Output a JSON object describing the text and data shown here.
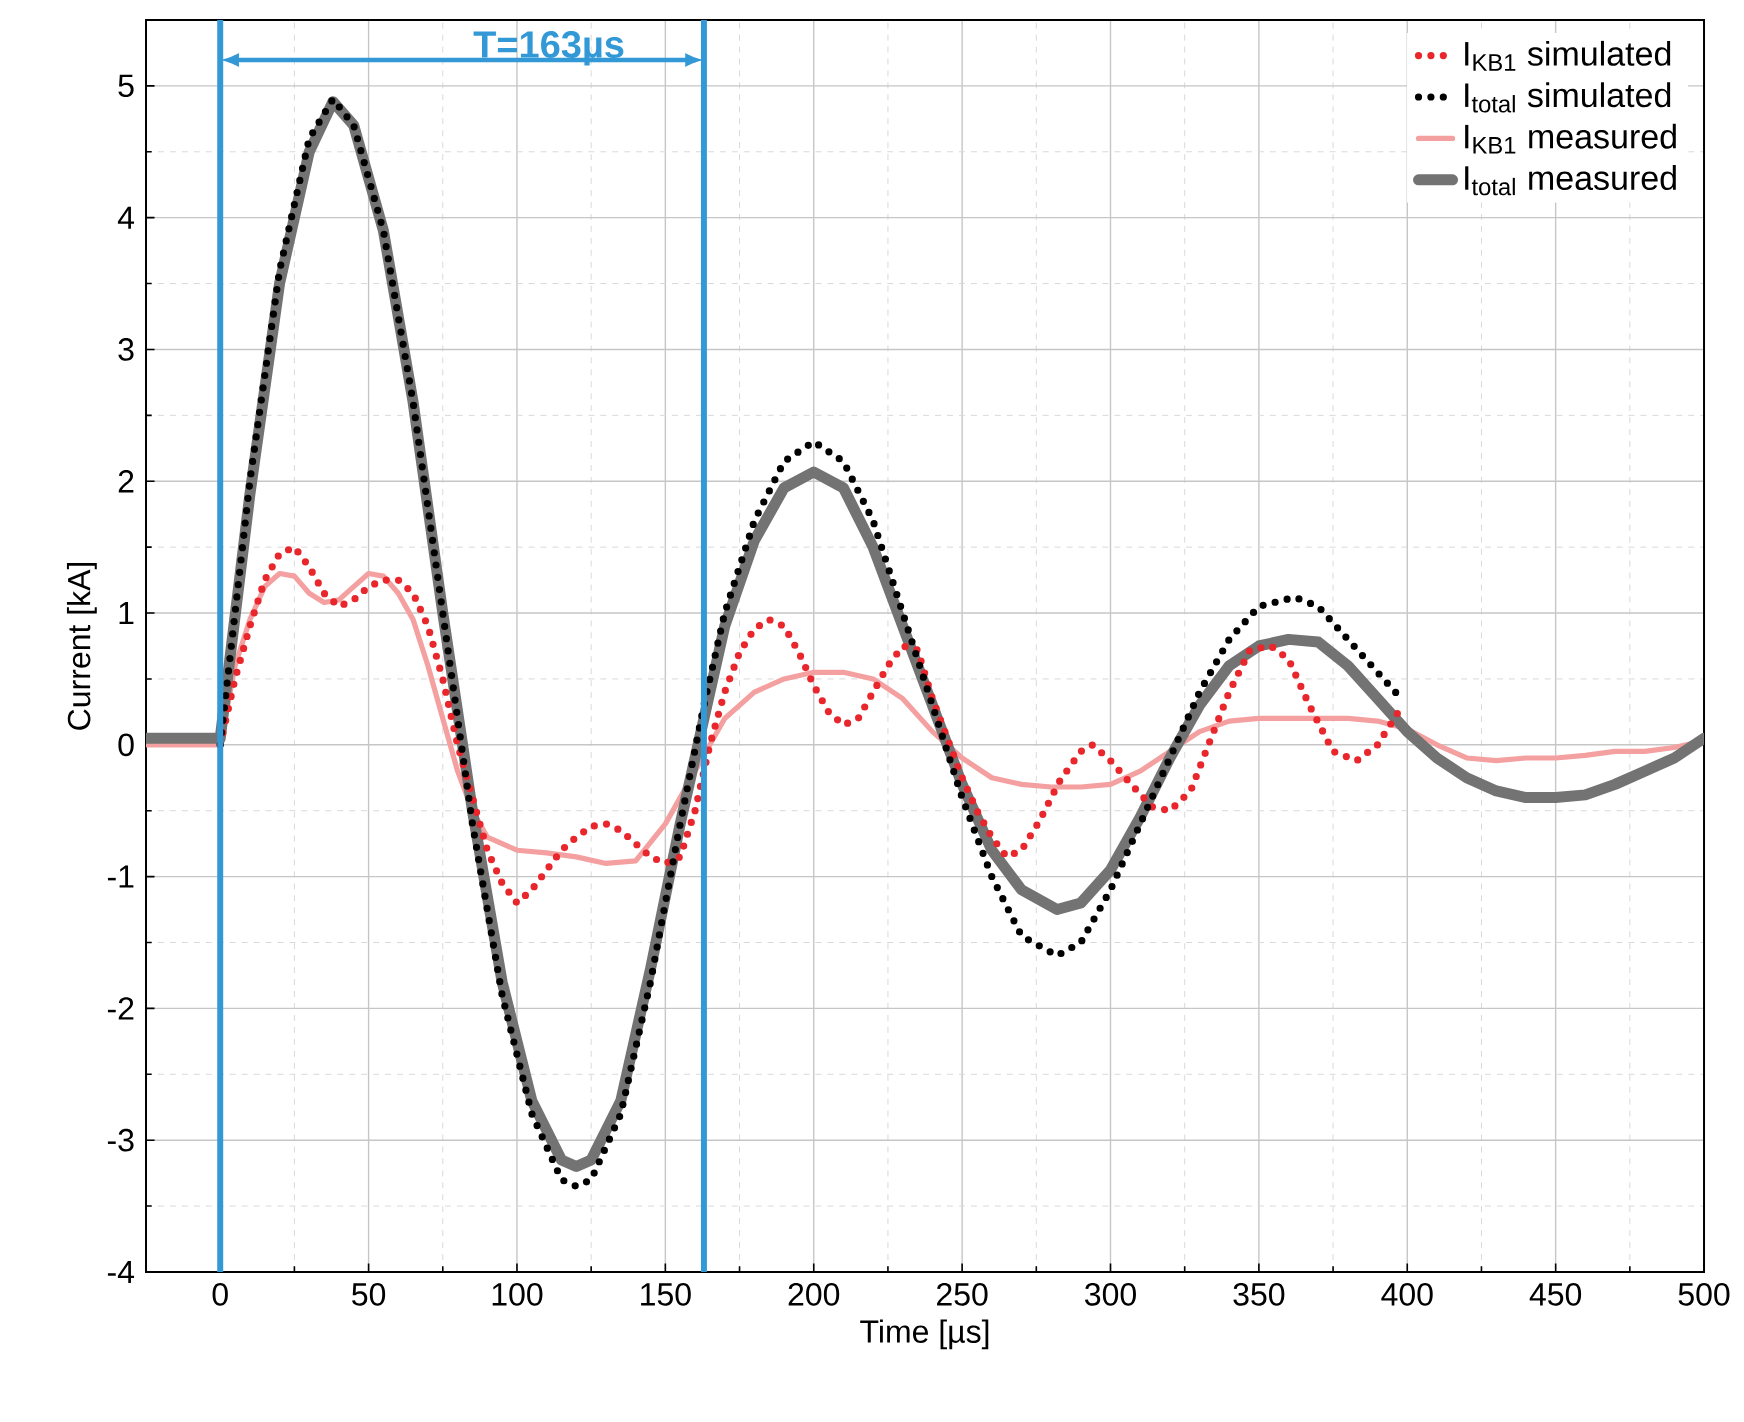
{
  "chart_data": {
    "type": "line",
    "xlabel": "Time [µs]",
    "ylabel": "Current [kA]",
    "xlim": [
      -25,
      500
    ],
    "ylim": [
      -4,
      5.5
    ],
    "xticks": [
      0,
      50,
      100,
      150,
      200,
      250,
      300,
      350,
      400,
      450,
      500
    ],
    "yticks": [
      -4,
      -3,
      -2,
      -1,
      0,
      1,
      2,
      3,
      4,
      5
    ],
    "grid": true,
    "legend": "top right",
    "series": [
      {
        "name": "I$_{KB1}$ simulated",
        "color": "#e8262b",
        "line_style": "dotted",
        "x": [
          0,
          5,
          10,
          15,
          20,
          25,
          30,
          35,
          40,
          45,
          50,
          55,
          60,
          65,
          70,
          75,
          80,
          85,
          90,
          95,
          100,
          105,
          110,
          115,
          120,
          125,
          130,
          135,
          140,
          145,
          150,
          155,
          160,
          165,
          170,
          175,
          180,
          185,
          190,
          195,
          200,
          205,
          210,
          215,
          220,
          225,
          230,
          235,
          240,
          245,
          250,
          255,
          260,
          265,
          270,
          276,
          283,
          290,
          294,
          300,
          307,
          314,
          320,
          327,
          333,
          340,
          347,
          354,
          360,
          367,
          375,
          383,
          390,
          397
        ],
        "values": [
          0,
          0.5,
          0.9,
          1.25,
          1.45,
          1.5,
          1.35,
          1.15,
          1.05,
          1.1,
          1.2,
          1.25,
          1.25,
          1.15,
          0.9,
          0.5,
          0.0,
          -0.4,
          -0.8,
          -1.05,
          -1.2,
          -1.1,
          -0.95,
          -0.8,
          -0.7,
          -0.62,
          -0.6,
          -0.65,
          -0.75,
          -0.85,
          -0.9,
          -0.85,
          -0.5,
          0.0,
          0.4,
          0.7,
          0.88,
          0.95,
          0.9,
          0.7,
          0.45,
          0.25,
          0.15,
          0.2,
          0.4,
          0.6,
          0.75,
          0.72,
          0.35,
          0.05,
          -0.25,
          -0.5,
          -0.7,
          -0.85,
          -0.8,
          -0.58,
          -0.27,
          -0.05,
          0.0,
          -0.12,
          -0.3,
          -0.47,
          -0.5,
          -0.35,
          0.0,
          0.4,
          0.72,
          0.75,
          0.65,
          0.3,
          -0.05,
          -0.12,
          0.0,
          0.25
        ]
      },
      {
        "name": "I$_{total}$ simulated",
        "color": "#000000",
        "line_style": "dotted",
        "x": [
          0,
          10,
          20,
          30,
          38,
          45,
          55,
          65,
          75,
          85,
          95,
          105,
          115,
          120,
          125,
          135,
          145,
          155,
          163,
          170,
          180,
          190,
          200,
          210,
          220,
          230,
          240,
          250,
          260,
          270,
          282,
          290,
          300,
          310,
          320,
          330,
          340,
          350,
          362,
          370,
          380,
          390,
          398
        ],
        "values": [
          0,
          2.0,
          3.6,
          4.6,
          4.9,
          4.7,
          3.9,
          2.6,
          1.0,
          -0.6,
          -1.9,
          -2.8,
          -3.3,
          -3.35,
          -3.3,
          -2.8,
          -1.8,
          -0.6,
          0.3,
          1.0,
          1.7,
          2.15,
          2.3,
          2.15,
          1.7,
          1.0,
          0.3,
          -0.4,
          -1.0,
          -1.45,
          -1.6,
          -1.5,
          -1.1,
          -0.6,
          -0.1,
          0.4,
          0.8,
          1.05,
          1.12,
          1.05,
          0.8,
          0.55,
          0.35
        ]
      },
      {
        "name": "I$_{KB1}$ measured",
        "color": "#f4a0a0",
        "line_style": "solid",
        "x": [
          -25,
          0,
          5,
          10,
          15,
          20,
          25,
          30,
          35,
          40,
          45,
          50,
          55,
          60,
          65,
          70,
          75,
          80,
          85,
          90,
          100,
          110,
          120,
          130,
          140,
          150,
          160,
          165,
          170,
          180,
          190,
          200,
          210,
          220,
          230,
          240,
          250,
          260,
          270,
          280,
          290,
          300,
          310,
          320,
          330,
          340,
          350,
          360,
          370,
          380,
          390,
          400,
          410,
          420,
          430,
          440,
          450,
          460,
          470,
          480,
          490,
          500
        ],
        "values": [
          0,
          0,
          0.6,
          0.95,
          1.2,
          1.3,
          1.28,
          1.15,
          1.08,
          1.1,
          1.2,
          1.3,
          1.28,
          1.15,
          0.95,
          0.6,
          0.2,
          -0.2,
          -0.5,
          -0.7,
          -0.8,
          -0.82,
          -0.85,
          -0.9,
          -0.88,
          -0.6,
          -0.2,
          0.0,
          0.2,
          0.4,
          0.5,
          0.55,
          0.55,
          0.5,
          0.35,
          0.1,
          -0.1,
          -0.25,
          -0.3,
          -0.32,
          -0.32,
          -0.3,
          -0.2,
          -0.05,
          0.1,
          0.18,
          0.2,
          0.2,
          0.2,
          0.2,
          0.18,
          0.12,
          0.0,
          -0.1,
          -0.12,
          -0.1,
          -0.1,
          -0.08,
          -0.05,
          -0.05,
          -0.02,
          0.03
        ]
      },
      {
        "name": "I$_{total}$ measured",
        "color": "#737373",
        "line_style": "solid",
        "x": [
          -25,
          0,
          10,
          20,
          30,
          38,
          45,
          55,
          65,
          75,
          85,
          95,
          105,
          115,
          120,
          125,
          135,
          145,
          155,
          163,
          170,
          180,
          190,
          200,
          210,
          220,
          230,
          240,
          250,
          260,
          270,
          282,
          290,
          300,
          310,
          320,
          330,
          340,
          350,
          360,
          370,
          380,
          390,
          400,
          410,
          420,
          430,
          440,
          450,
          460,
          470,
          480,
          490,
          500
        ],
        "values": [
          0.05,
          0.05,
          1.9,
          3.5,
          4.5,
          4.88,
          4.7,
          3.9,
          2.6,
          1.0,
          -0.5,
          -1.8,
          -2.7,
          -3.15,
          -3.2,
          -3.15,
          -2.7,
          -1.7,
          -0.6,
          0.2,
          0.9,
          1.55,
          1.95,
          2.07,
          1.95,
          1.5,
          0.9,
          0.3,
          -0.3,
          -0.8,
          -1.1,
          -1.25,
          -1.2,
          -0.95,
          -0.55,
          -0.1,
          0.3,
          0.6,
          0.75,
          0.8,
          0.78,
          0.6,
          0.35,
          0.1,
          -0.1,
          -0.25,
          -0.35,
          -0.4,
          -0.4,
          -0.38,
          -0.3,
          -0.2,
          -0.1,
          0.05
        ]
      }
    ],
    "ref_lines": [
      {
        "axis": "x",
        "value": 0,
        "color": "#3399d6"
      },
      {
        "axis": "x",
        "value": 163,
        "color": "#3399d6"
      }
    ],
    "annotations": [
      "T=163µs"
    ]
  }
}
